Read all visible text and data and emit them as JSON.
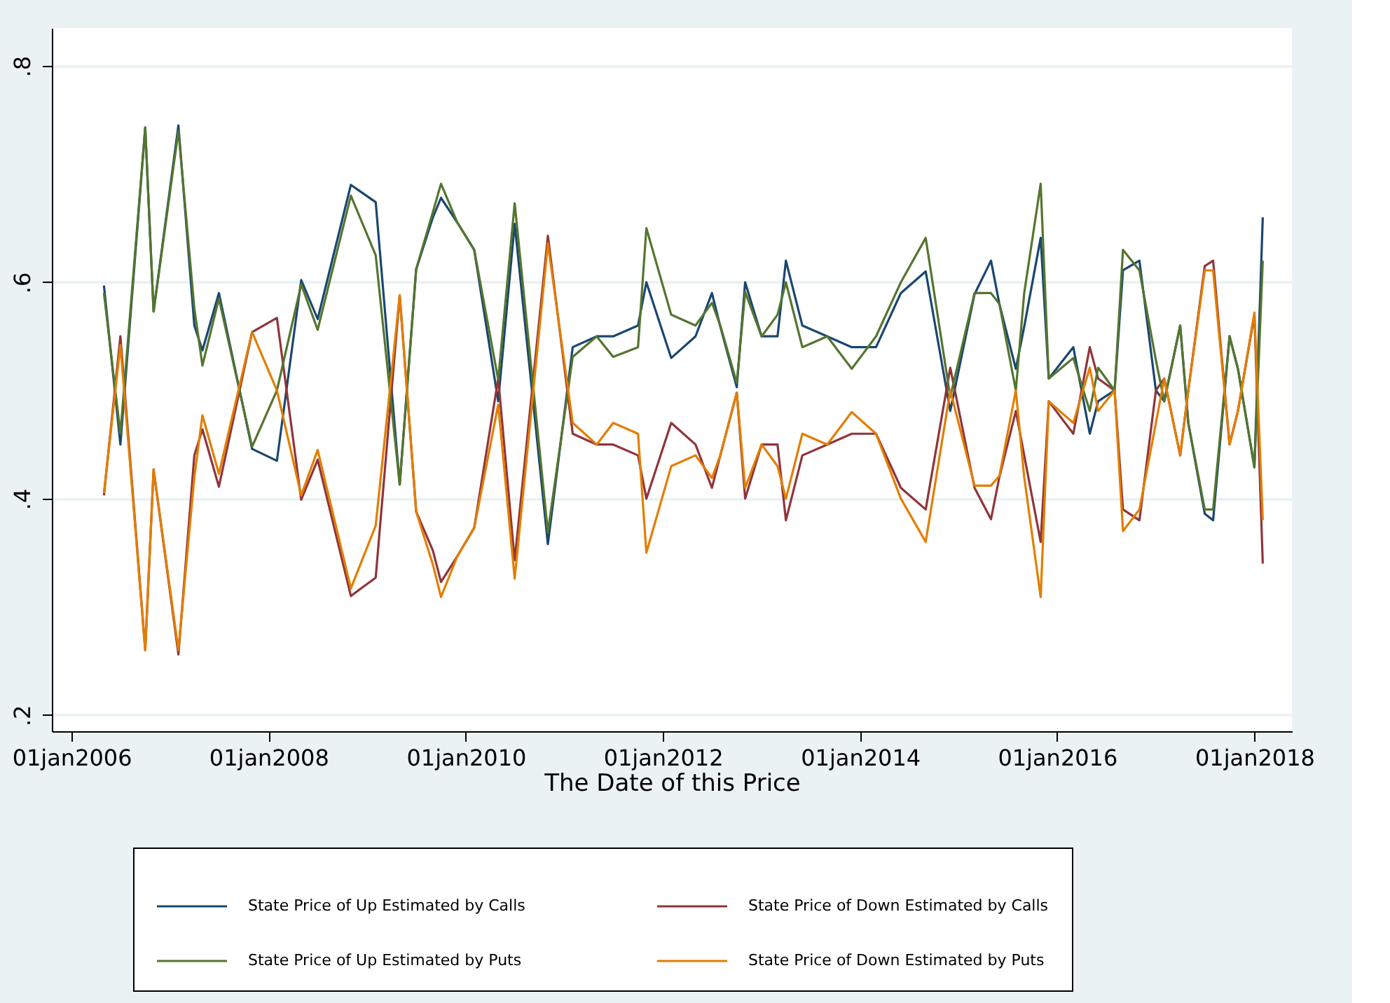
{
  "chart_data": {
    "type": "line",
    "xlabel": "The Date of this Price",
    "x": [
      "2006-05",
      "2006-07",
      "2006-10",
      "2006-11",
      "2007-02",
      "2007-04",
      "2007-05",
      "2007-07",
      "2007-11",
      "2008-02",
      "2008-05",
      "2008-07",
      "2008-11",
      "2009-02",
      "2009-05",
      "2009-07",
      "2009-09",
      "2009-10",
      "2009-12",
      "2010-02",
      "2010-05",
      "2010-07",
      "2010-11",
      "2011-02",
      "2011-05",
      "2011-07",
      "2011-10",
      "2011-11",
      "2012-02",
      "2012-05",
      "2012-07",
      "2012-08",
      "2012-10",
      "2012-11",
      "2013-01",
      "2013-03",
      "2013-04",
      "2013-06",
      "2013-09",
      "2013-12",
      "2014-03",
      "2014-06",
      "2014-09",
      "2014-12",
      "2015-03",
      "2015-05",
      "2015-06",
      "2015-08",
      "2015-09",
      "2015-11",
      "2015-12",
      "2016-03",
      "2016-05",
      "2016-06",
      "2016-08",
      "2016-09",
      "2016-11",
      "2017-01",
      "2017-02",
      "2017-04",
      "2017-05",
      "2017-07",
      "2017-08",
      "2017-10",
      "2017-11",
      "2018-01",
      "2018-02"
    ],
    "series": [
      {
        "name": "State Price of Up Estimated by Calls",
        "color": "#1a476f",
        "values": [
          0.597,
          0.45,
          0.743,
          0.573,
          0.745,
          0.56,
          0.537,
          0.59,
          0.446,
          0.435,
          0.602,
          0.566,
          0.69,
          0.674,
          0.413,
          0.612,
          0.66,
          0.678,
          0.655,
          0.63,
          0.49,
          0.654,
          0.358,
          0.54,
          0.55,
          0.55,
          0.56,
          0.6,
          0.53,
          0.55,
          0.59,
          0.559,
          0.503,
          0.6,
          0.55,
          0.55,
          0.62,
          0.56,
          0.55,
          0.54,
          0.54,
          0.59,
          0.61,
          0.481,
          0.589,
          0.62,
          0.58,
          0.52,
          0.559,
          0.641,
          0.511,
          0.54,
          0.46,
          0.49,
          0.5,
          0.611,
          0.62,
          0.5,
          0.49,
          0.56,
          0.47,
          0.386,
          0.38,
          0.55,
          0.52,
          0.429,
          0.66
        ]
      },
      {
        "name": "State Price of Down Estimated by Calls",
        "color": "#90353b",
        "values": [
          0.403,
          0.55,
          0.26,
          0.427,
          0.256,
          0.44,
          0.464,
          0.411,
          0.554,
          0.567,
          0.399,
          0.436,
          0.31,
          0.327,
          0.588,
          0.388,
          0.352,
          0.323,
          0.347,
          0.373,
          0.511,
          0.343,
          0.643,
          0.46,
          0.45,
          0.45,
          0.44,
          0.4,
          0.47,
          0.45,
          0.41,
          0.44,
          0.498,
          0.4,
          0.45,
          0.45,
          0.38,
          0.44,
          0.45,
          0.46,
          0.46,
          0.41,
          0.39,
          0.521,
          0.41,
          0.381,
          0.42,
          0.481,
          0.44,
          0.36,
          0.49,
          0.46,
          0.54,
          0.511,
          0.5,
          0.39,
          0.38,
          0.5,
          0.511,
          0.44,
          0.5,
          0.615,
          0.62,
          0.45,
          0.481,
          0.57,
          0.34
        ]
      },
      {
        "name": "State Price of Up Estimated by Puts",
        "color": "#55752f",
        "values": [
          0.59,
          0.46,
          0.743,
          0.573,
          0.74,
          0.576,
          0.523,
          0.585,
          0.448,
          0.5,
          0.598,
          0.556,
          0.68,
          0.625,
          0.413,
          0.612,
          0.665,
          0.691,
          0.655,
          0.63,
          0.51,
          0.673,
          0.369,
          0.531,
          0.55,
          0.531,
          0.54,
          0.65,
          0.57,
          0.56,
          0.581,
          0.56,
          0.507,
          0.591,
          0.55,
          0.57,
          0.6,
          0.54,
          0.55,
          0.52,
          0.55,
          0.6,
          0.641,
          0.494,
          0.59,
          0.59,
          0.58,
          0.5,
          0.59,
          0.691,
          0.511,
          0.53,
          0.481,
          0.521,
          0.5,
          0.63,
          0.611,
          0.528,
          0.49,
          0.56,
          0.47,
          0.39,
          0.39,
          0.55,
          0.52,
          0.429,
          0.62
        ]
      },
      {
        "name": "State Price of Down Estimated by Puts",
        "color": "#e37e00",
        "values": [
          0.405,
          0.542,
          0.26,
          0.427,
          0.26,
          0.42,
          0.477,
          0.423,
          0.554,
          0.5,
          0.403,
          0.445,
          0.317,
          0.375,
          0.588,
          0.388,
          0.339,
          0.309,
          0.347,
          0.373,
          0.487,
          0.326,
          0.636,
          0.47,
          0.45,
          0.47,
          0.46,
          0.35,
          0.43,
          0.44,
          0.419,
          0.44,
          0.498,
          0.41,
          0.45,
          0.43,
          0.4,
          0.46,
          0.45,
          0.48,
          0.46,
          0.4,
          0.36,
          0.5,
          0.412,
          0.412,
          0.421,
          0.5,
          0.42,
          0.309,
          0.49,
          0.47,
          0.521,
          0.481,
          0.5,
          0.37,
          0.39,
          0.47,
          0.511,
          0.44,
          0.5,
          0.611,
          0.611,
          0.45,
          0.481,
          0.572,
          0.38
        ]
      }
    ],
    "xlim": [
      "2005-10-20",
      "2018-05-20"
    ],
    "xticks": [
      {
        "value": "2006-01-01",
        "label": "01jan2006"
      },
      {
        "value": "2008-01-01",
        "label": "01jan2008"
      },
      {
        "value": "2010-01-01",
        "label": "01jan2010"
      },
      {
        "value": "2012-01-01",
        "label": "01jan2012"
      },
      {
        "value": "2014-01-01",
        "label": "01jan2014"
      },
      {
        "value": "2016-01-01",
        "label": "01jan2016"
      },
      {
        "value": "2018-01-01",
        "label": "01jan2018"
      }
    ],
    "ylim": [
      0.185,
      0.835
    ],
    "yticks": [
      {
        "value": 0.2,
        "label": ".2"
      },
      {
        "value": 0.4,
        "label": ".4"
      },
      {
        "value": 0.6,
        "label": ".6"
      },
      {
        "value": 0.8,
        "label": ".8"
      }
    ],
    "grid": "y",
    "legend": "bottom",
    "marker": "none",
    "line_style": "solid"
  }
}
